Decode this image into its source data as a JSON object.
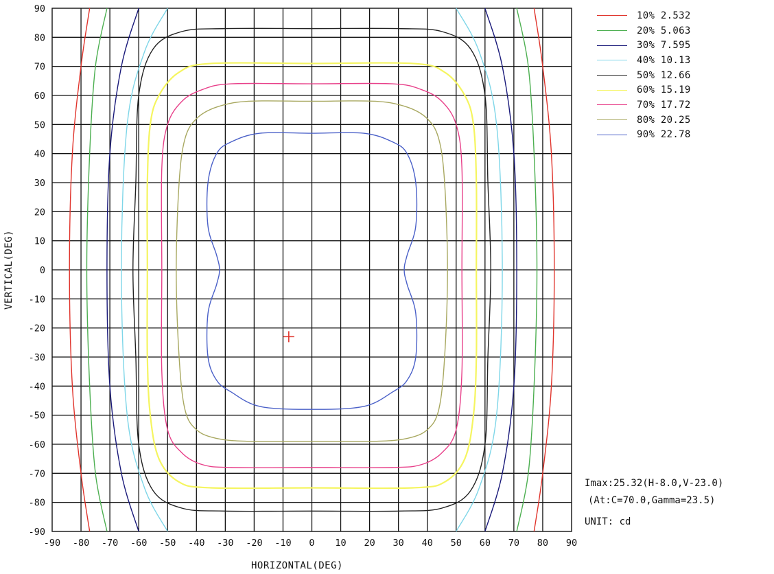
{
  "chart_data": {
    "type": "contour",
    "xlabel": "HORIZONTAL(DEG)",
    "ylabel": "VERTICAL(DEG)",
    "xlim": [
      -90,
      90
    ],
    "ylim": [
      -90,
      90
    ],
    "x_ticks": [
      -90,
      -80,
      -70,
      -60,
      -50,
      -40,
      -30,
      -20,
      -10,
      0,
      10,
      20,
      30,
      40,
      50,
      60,
      70,
      80,
      90
    ],
    "y_ticks": [
      90,
      80,
      70,
      60,
      50,
      40,
      30,
      20,
      10,
      0,
      -10,
      -20,
      -30,
      -40,
      -50,
      -60,
      -70,
      -80,
      -90
    ],
    "grid": true,
    "legend_position": "top-right",
    "legend": [
      {
        "label": "10% 2.532",
        "color": "#e0342c"
      },
      {
        "label": "20% 5.063",
        "color": "#4caf50"
      },
      {
        "label": "30% 7.595",
        "color": "#1a1a7a"
      },
      {
        "label": "40% 10.13",
        "color": "#7ed6e8"
      },
      {
        "label": "50% 12.66",
        "color": "#222222"
      },
      {
        "label": "60% 15.19",
        "color": "#f5f560"
      },
      {
        "label": "70% 17.72",
        "color": "#e8408a"
      },
      {
        "label": "80% 20.25",
        "color": "#a8a860"
      },
      {
        "label": "90% 22.78",
        "color": "#4a60c8"
      }
    ],
    "contours": [
      {
        "level": "10%",
        "color": "#e0342c",
        "points": [
          [
            -77,
            90
          ],
          [
            -80,
            70
          ],
          [
            -83,
            40
          ],
          [
            -84,
            0
          ],
          [
            -83,
            -40
          ],
          [
            -80,
            -70
          ],
          [
            -77,
            -90
          ]
        ],
        "mirror": true
      },
      {
        "level": "20%",
        "color": "#4caf50",
        "points": [
          [
            -71,
            90
          ],
          [
            -75,
            70
          ],
          [
            -77,
            40
          ],
          [
            -78,
            0
          ],
          [
            -77,
            -40
          ],
          [
            -75,
            -70
          ],
          [
            -71,
            -90
          ]
        ],
        "mirror": true
      },
      {
        "level": "30%",
        "color": "#1a1a7a",
        "points": [
          [
            -60,
            90
          ],
          [
            -66,
            70
          ],
          [
            -70,
            40
          ],
          [
            -71,
            0
          ],
          [
            -70,
            -40
          ],
          [
            -66,
            -70
          ],
          [
            -60,
            -90
          ]
        ],
        "mirror": true
      },
      {
        "level": "40%",
        "color": "#7ed6e8",
        "points": [
          [
            -50,
            90
          ],
          [
            -58,
            75
          ],
          [
            -64,
            50
          ],
          [
            -66,
            0
          ],
          [
            -64,
            -50
          ],
          [
            -58,
            -75
          ],
          [
            -50,
            -90
          ]
        ],
        "mirror": true
      },
      {
        "level": "50%",
        "color": "#222222",
        "points": [
          [
            -55,
            76
          ],
          [
            -60,
            60
          ],
          [
            -61,
            30
          ],
          [
            -62,
            0
          ],
          [
            -61,
            -30
          ],
          [
            -60,
            -60
          ],
          [
            -55,
            -76
          ],
          [
            -45,
            -82
          ],
          [
            -30,
            -83
          ],
          [
            0,
            -83
          ],
          [
            30,
            -83
          ],
          [
            45,
            -82
          ],
          [
            55,
            -76
          ],
          [
            60,
            -60
          ],
          [
            61,
            -30
          ],
          [
            62,
            0
          ],
          [
            61,
            30
          ],
          [
            60,
            60
          ],
          [
            55,
            76
          ],
          [
            45,
            82
          ],
          [
            30,
            83
          ],
          [
            0,
            83
          ],
          [
            -30,
            83
          ],
          [
            -45,
            82
          ]
        ],
        "closed": true
      },
      {
        "level": "60%",
        "color": "#f5f560",
        "points": [
          [
            -46,
            68
          ],
          [
            -53,
            60
          ],
          [
            -56,
            50
          ],
          [
            -57,
            30
          ],
          [
            -57,
            0
          ],
          [
            -57,
            -30
          ],
          [
            -56,
            -50
          ],
          [
            -53,
            -65
          ],
          [
            -46,
            -73
          ],
          [
            -35,
            -75
          ],
          [
            0,
            -75
          ],
          [
            35,
            -75
          ],
          [
            46,
            -73
          ],
          [
            53,
            -65
          ],
          [
            56,
            -50
          ],
          [
            57,
            -30
          ],
          [
            57,
            0
          ],
          [
            57,
            30
          ],
          [
            56,
            50
          ],
          [
            53,
            60
          ],
          [
            46,
            68
          ],
          [
            35,
            71
          ],
          [
            0,
            71
          ],
          [
            -35,
            71
          ]
        ],
        "closed": true
      },
      {
        "level": "70%",
        "color": "#e8408a",
        "points": [
          [
            -38,
            62
          ],
          [
            -45,
            58
          ],
          [
            -50,
            50
          ],
          [
            -52,
            35
          ],
          [
            -52,
            0
          ],
          [
            -52,
            -35
          ],
          [
            -50,
            -55
          ],
          [
            -45,
            -63
          ],
          [
            -38,
            -67
          ],
          [
            -28,
            -68
          ],
          [
            0,
            -68
          ],
          [
            28,
            -68
          ],
          [
            38,
            -67
          ],
          [
            45,
            -63
          ],
          [
            50,
            -55
          ],
          [
            52,
            -35
          ],
          [
            52,
            0
          ],
          [
            52,
            35
          ],
          [
            50,
            50
          ],
          [
            45,
            58
          ],
          [
            38,
            62
          ],
          [
            28,
            64
          ],
          [
            0,
            64
          ],
          [
            -28,
            64
          ]
        ],
        "closed": true
      },
      {
        "level": "80%",
        "color": "#a8a860",
        "points": [
          [
            -33,
            56
          ],
          [
            -40,
            52
          ],
          [
            -44,
            45
          ],
          [
            -46,
            30
          ],
          [
            -47,
            0
          ],
          [
            -46,
            -30
          ],
          [
            -44,
            -48
          ],
          [
            -40,
            -55
          ],
          [
            -33,
            -58
          ],
          [
            -22,
            -59
          ],
          [
            0,
            -59
          ],
          [
            22,
            -59
          ],
          [
            33,
            -58
          ],
          [
            40,
            -55
          ],
          [
            44,
            -48
          ],
          [
            46,
            -30
          ],
          [
            47,
            0
          ],
          [
            46,
            30
          ],
          [
            44,
            45
          ],
          [
            40,
            52
          ],
          [
            33,
            56
          ],
          [
            22,
            58
          ],
          [
            0,
            58
          ],
          [
            -22,
            58
          ]
        ],
        "closed": true
      },
      {
        "level": "90%",
        "color": "#4a60c8",
        "points": [
          [
            -28,
            44
          ],
          [
            -33,
            40
          ],
          [
            -36,
            30
          ],
          [
            -36,
            15
          ],
          [
            -33,
            5
          ],
          [
            -32,
            0
          ],
          [
            -33,
            -5
          ],
          [
            -36,
            -15
          ],
          [
            -36,
            -30
          ],
          [
            -33,
            -38
          ],
          [
            -28,
            -42
          ],
          [
            -18,
            -47
          ],
          [
            0,
            -48
          ],
          [
            18,
            -47
          ],
          [
            28,
            -42
          ],
          [
            33,
            -38
          ],
          [
            36,
            -30
          ],
          [
            36,
            -15
          ],
          [
            33,
            -5
          ],
          [
            32,
            0
          ],
          [
            33,
            5
          ],
          [
            36,
            15
          ],
          [
            36,
            30
          ],
          [
            33,
            40
          ],
          [
            28,
            44
          ],
          [
            18,
            47
          ],
          [
            0,
            47
          ],
          [
            -18,
            47
          ]
        ],
        "closed": true
      }
    ],
    "max_marker": {
      "x": -8,
      "y": -23,
      "color": "#e0342c"
    }
  },
  "info": {
    "imax": "Imax:25.32(H-8.0,V-23.0)",
    "at": "(At:C=70.0,Gamma=23.5)",
    "unit": "UNIT: cd"
  }
}
